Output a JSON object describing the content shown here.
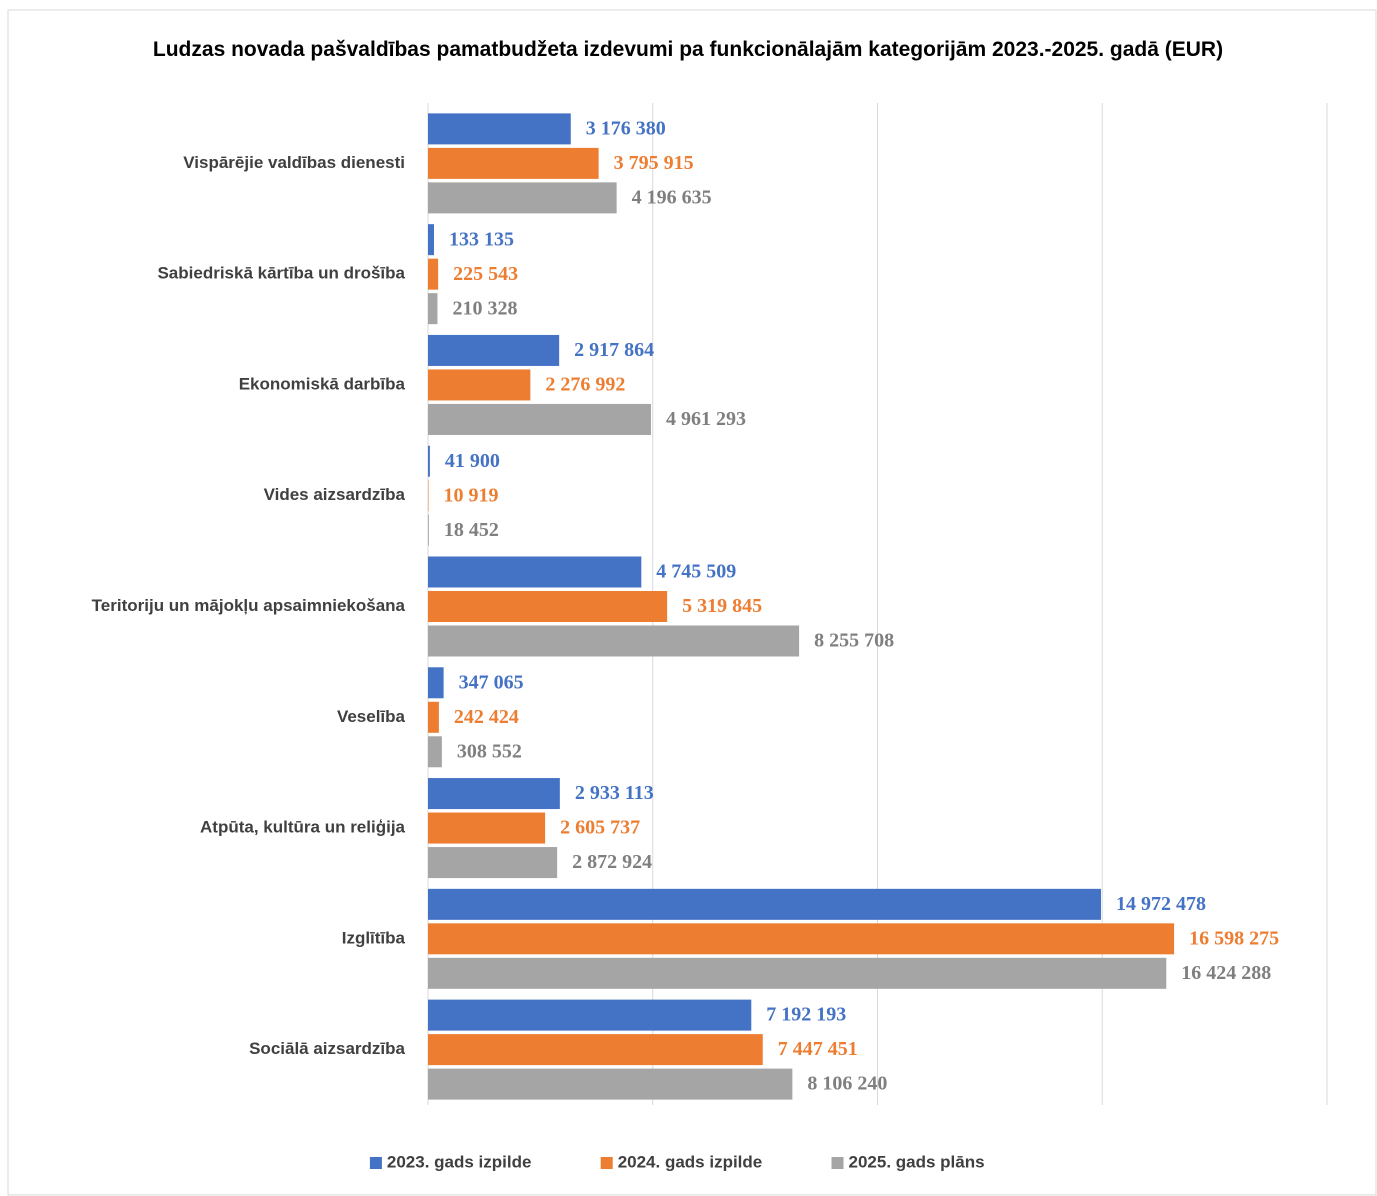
{
  "chart_data": {
    "type": "barh",
    "title": "Ludzas novada pašvaldības pamatbudžeta izdevumi pa funkcionālajām kategorijām 2023.-2025. gadā (EUR)",
    "categories": [
      "Vispārējie valdības dienesti",
      "Sabiedriskā kārtība un drošība",
      "Ekonomiskā darbība",
      "Vides aizsardzība",
      "Teritoriju un mājokļu apsaimniekošana",
      "Veselība",
      "Atpūta, kultūra un reliģija",
      "Izglītība",
      "Sociālā aizsardzība"
    ],
    "series": [
      {
        "name": "2023. gads izpilde",
        "color": "#4472c4",
        "label_color": "#4472c4",
        "values": [
          3176380,
          133135,
          2917864,
          41900,
          4745509,
          347065,
          2933113,
          14972478,
          7192193
        ],
        "value_labels": [
          "3 176 380",
          "133 135",
          "2 917 864",
          "41 900",
          "4 745 509",
          "347 065",
          "2 933 113",
          "14 972 478",
          "7 192 193"
        ]
      },
      {
        "name": "2024. gads izpilde",
        "color": "#ed7d31",
        "label_color": "#ed7d31",
        "values": [
          3795915,
          225543,
          2276992,
          10919,
          5319845,
          242424,
          2605737,
          16598275,
          7447451
        ],
        "value_labels": [
          "3 795 915",
          "225 543",
          "2 276 992",
          "10 919",
          "5 319 845",
          "242 424",
          "2 605 737",
          "16 598 275",
          "7 447 451"
        ]
      },
      {
        "name": "2025. gads plāns",
        "color": "#a5a5a5",
        "label_color": "#7f7f7f",
        "values": [
          4196635,
          210328,
          4961293,
          18452,
          8255708,
          308552,
          2872924,
          16424288,
          8106240
        ],
        "value_labels": [
          "4 196 635",
          "210 328",
          "4 961 293",
          "18 452",
          "8 255 708",
          "308 552",
          "2 872 924",
          "16 424 288",
          "8 106 240"
        ]
      }
    ],
    "xlim": [
      0,
      20000000
    ],
    "xticks": [
      0,
      5000000,
      10000000,
      15000000,
      20000000
    ],
    "grid": true,
    "legend": "bottom"
  }
}
